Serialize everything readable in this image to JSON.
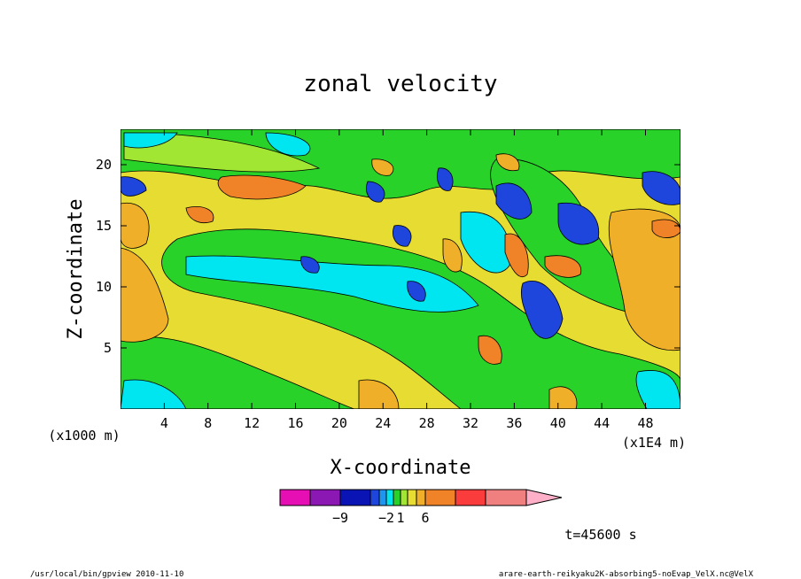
{
  "chart_data": {
    "type": "heatmap",
    "title": "zonal velocity",
    "xlabel": "X-coordinate",
    "ylabel": "Z-coordinate",
    "x_unit_left": "(x1000 m)",
    "x_unit_right": "(x1E4 m)",
    "x_ticks": [
      4,
      8,
      12,
      16,
      20,
      24,
      28,
      32,
      36,
      40,
      44,
      48
    ],
    "y_ticks": [
      5,
      10,
      15,
      20
    ],
    "xlim": [
      0,
      51.2
    ],
    "ylim": [
      0,
      22.9
    ],
    "legend": {
      "colors": [
        "#e60fb4",
        "#8c18b4",
        "#0a14b4",
        "#1e46dc",
        "#1e96f0",
        "#00e6f0",
        "#28d228",
        "#a0e632",
        "#e6dc32",
        "#f0af28",
        "#f08228",
        "#fa3c3c",
        "#f08080",
        "#ffafc8"
      ],
      "labels": [
        {
          "pos": 2,
          "text": "−9"
        },
        {
          "pos": 5,
          "text": "−2"
        },
        {
          "pos": 7,
          "text": "1"
        },
        {
          "pos": 10,
          "text": "6"
        }
      ]
    },
    "time_label": "t=45600 s"
  },
  "footer": {
    "left": "/usr/local/bin/gpview  2010-11-10",
    "right": "arare-earth-reikyaku2K-absorbing5-noEvap_VelX.nc@VelX"
  }
}
